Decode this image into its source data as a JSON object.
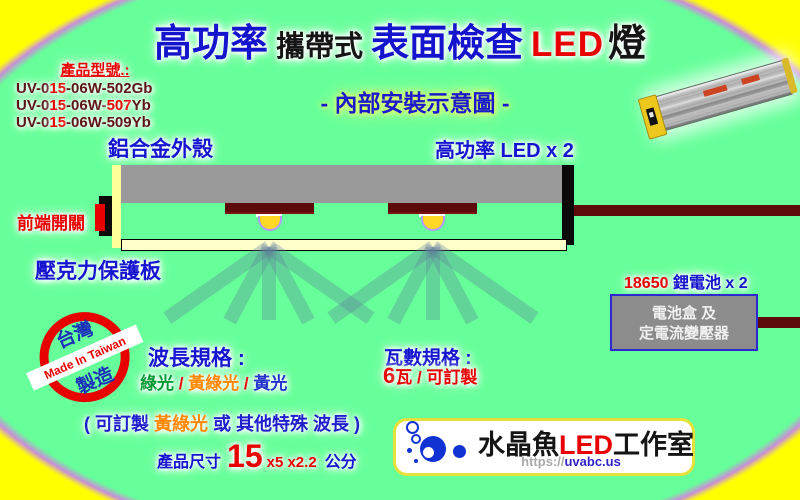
{
  "colors": {
    "background_yellow": "#ffff00",
    "background_green": "#66ff99",
    "edge_violet": "#c98fd8",
    "wire_maroon": "#5c0a0a",
    "text_blue": "#1414cc",
    "text_red": "#e80000",
    "text_orange": "#ff8800",
    "text_green": "#009933"
  },
  "title": {
    "high_power": "高功率",
    "portable": "攜帶式",
    "surface_inspection": "表面檢查",
    "led": "LED",
    "lamp": "燈"
  },
  "subtitle": "- 內部安裝示意圖 -",
  "models": {
    "heading": "產品型號.:",
    "line1": {
      "a": "UV-0",
      "b": "15",
      "c": "-06W-502Gb"
    },
    "line2": {
      "a": "UV-0",
      "b": "15",
      "c": "-06W-",
      "d": "507",
      "e": "Yb"
    },
    "line3": {
      "a": "UV-0",
      "b": "15",
      "c": "-06W-509Yb"
    }
  },
  "diagram": {
    "housing_label": "鋁合金外殼",
    "led_label": "高功率  LED x 2",
    "switch_label": "前端開關",
    "acrylic_label": "壓克力保護板",
    "battery_label": {
      "model": "18650",
      "rest": " 鋰電池 x 2"
    },
    "battery_box": {
      "line1": "電池盒 及",
      "line2": "定電流變壓器"
    }
  },
  "stamp": {
    "top": "台灣",
    "bottom": "製造",
    "banner": "Made In Taiwan"
  },
  "specs": {
    "wavelength": {
      "heading": "波長規格 :",
      "green": "綠光",
      "sep1": " / ",
      "yellow_green": "黃綠光",
      "sep2": " / ",
      "yellow": "黃光"
    },
    "wattage": {
      "heading": "瓦數規格 :",
      "num": "6",
      "unit": "瓦",
      "sep": " / ",
      "custom": "可訂製"
    },
    "custom_note": {
      "a": "( 可訂製 ",
      "b": "黃綠光",
      "c": " 或 其他特殊 波長 )"
    },
    "dimensions": {
      "label": "產品尺寸",
      "big": "15",
      "rest": "x5 x2.2",
      "unit": "公分"
    }
  },
  "logo": {
    "name1": "水晶魚",
    "name2": "LED",
    "name3": "工作室",
    "url1": "https://",
    "url2": "uvabc.us"
  }
}
